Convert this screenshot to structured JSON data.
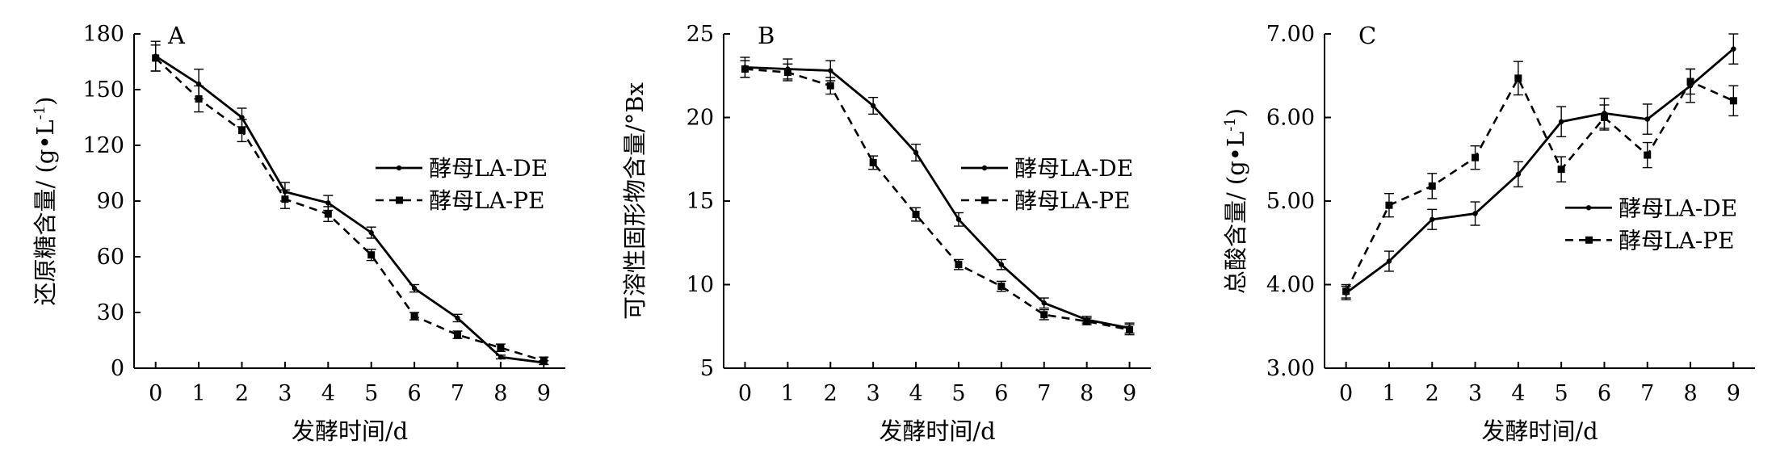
{
  "chart_data": [
    {
      "type": "line",
      "panel_label": "A",
      "xlabel": "发酵时间/d",
      "ylabel": "还原糖含量/ (g•L-1)",
      "ylabel_main": "还原糖含量/ (g•L",
      "ylabel_sup": "-1",
      "ylabel_tail": ")",
      "x": [
        0,
        1,
        2,
        3,
        4,
        5,
        6,
        7,
        8,
        9
      ],
      "xlim": [
        -0.5,
        9.5
      ],
      "ylim": [
        0,
        180
      ],
      "yticks": [
        0,
        30,
        60,
        90,
        120,
        150,
        180
      ],
      "ytick_labels": [
        "0",
        "30",
        "60",
        "90",
        "120",
        "150",
        "180"
      ],
      "xtick_labels": [
        "0",
        "1",
        "2",
        "3",
        "4",
        "5",
        "6",
        "7",
        "8",
        "9"
      ],
      "grid": false,
      "legend_position": "right-middle",
      "series": [
        {
          "name": "酵母LA-DE",
          "style": "solid",
          "values": [
            168,
            153,
            135,
            95,
            89,
            73,
            43,
            27,
            6,
            3
          ],
          "errors": [
            8,
            8,
            5,
            5,
            4,
            3,
            2,
            2,
            1,
            1
          ]
        },
        {
          "name": "酵母LA-PE",
          "style": "dashed",
          "values": [
            167,
            145,
            128,
            91,
            83,
            61,
            28,
            18,
            11,
            4
          ],
          "errors": [
            7,
            7,
            6,
            5,
            4,
            3,
            2,
            2,
            2,
            2
          ]
        }
      ]
    },
    {
      "type": "line",
      "panel_label": "B",
      "xlabel": "发酵时间/d",
      "ylabel": "可溶性固形物含量/°Bx",
      "ylabel_main": "可溶性固形物含量/°Bx",
      "ylabel_sup": "",
      "ylabel_tail": "",
      "x": [
        0,
        1,
        2,
        3,
        4,
        5,
        6,
        7,
        8,
        9
      ],
      "xlim": [
        -0.5,
        9.5
      ],
      "ylim": [
        5,
        25
      ],
      "yticks": [
        5,
        10,
        15,
        20,
        25
      ],
      "ytick_labels": [
        "5",
        "10",
        "15",
        "20",
        "25"
      ],
      "xtick_labels": [
        "0",
        "1",
        "2",
        "3",
        "4",
        "5",
        "6",
        "7",
        "8",
        "9"
      ],
      "grid": false,
      "legend_position": "right-middle",
      "series": [
        {
          "name": "酵母LA-DE",
          "style": "solid",
          "values": [
            23,
            22.9,
            22.8,
            20.7,
            17.9,
            13.9,
            11.2,
            8.9,
            7.9,
            7.4
          ],
          "errors": [
            0.6,
            0.6,
            0.6,
            0.5,
            0.5,
            0.4,
            0.3,
            0.3,
            0.2,
            0.3
          ]
        },
        {
          "name": "酵母LA-PE",
          "style": "dashed",
          "values": [
            22.9,
            22.7,
            21.9,
            17.3,
            14.2,
            11.2,
            9.9,
            8.2,
            7.8,
            7.3
          ],
          "errors": [
            0.5,
            0.5,
            0.5,
            0.4,
            0.4,
            0.3,
            0.3,
            0.3,
            0.2,
            0.3
          ]
        }
      ]
    },
    {
      "type": "line",
      "panel_label": "C",
      "xlabel": "发酵时间/d",
      "ylabel": "总酸含量/ (g•L-1)",
      "ylabel_main": "总酸含量/ (g•L",
      "ylabel_sup": "-1",
      "ylabel_tail": ")",
      "x": [
        0,
        1,
        2,
        3,
        4,
        5,
        6,
        7,
        8,
        9
      ],
      "xlim": [
        -0.5,
        9.5
      ],
      "ylim": [
        3,
        7
      ],
      "yticks": [
        3,
        4,
        5,
        6,
        7
      ],
      "ytick_labels": [
        "3.00",
        "4.00",
        "5.00",
        "6.00",
        "7.00"
      ],
      "xtick_labels": [
        "0",
        "1",
        "2",
        "3",
        "4",
        "5",
        "6",
        "7",
        "8",
        "9"
      ],
      "grid": false,
      "legend_position": "right-middle",
      "series": [
        {
          "name": "酵母LA-DE",
          "style": "solid",
          "values": [
            3.9,
            4.28,
            4.78,
            4.85,
            5.32,
            5.95,
            6.05,
            5.98,
            6.38,
            6.82
          ],
          "errors": [
            0.08,
            0.12,
            0.12,
            0.14,
            0.15,
            0.18,
            0.18,
            0.18,
            0.2,
            0.18
          ]
        },
        {
          "name": "酵母LA-PE",
          "style": "dashed",
          "values": [
            3.92,
            4.95,
            5.18,
            5.52,
            6.47,
            5.38,
            6.0,
            5.55,
            6.43,
            6.2
          ],
          "errors": [
            0.08,
            0.14,
            0.15,
            0.14,
            0.2,
            0.15,
            0.15,
            0.15,
            0.15,
            0.18
          ]
        }
      ]
    }
  ]
}
